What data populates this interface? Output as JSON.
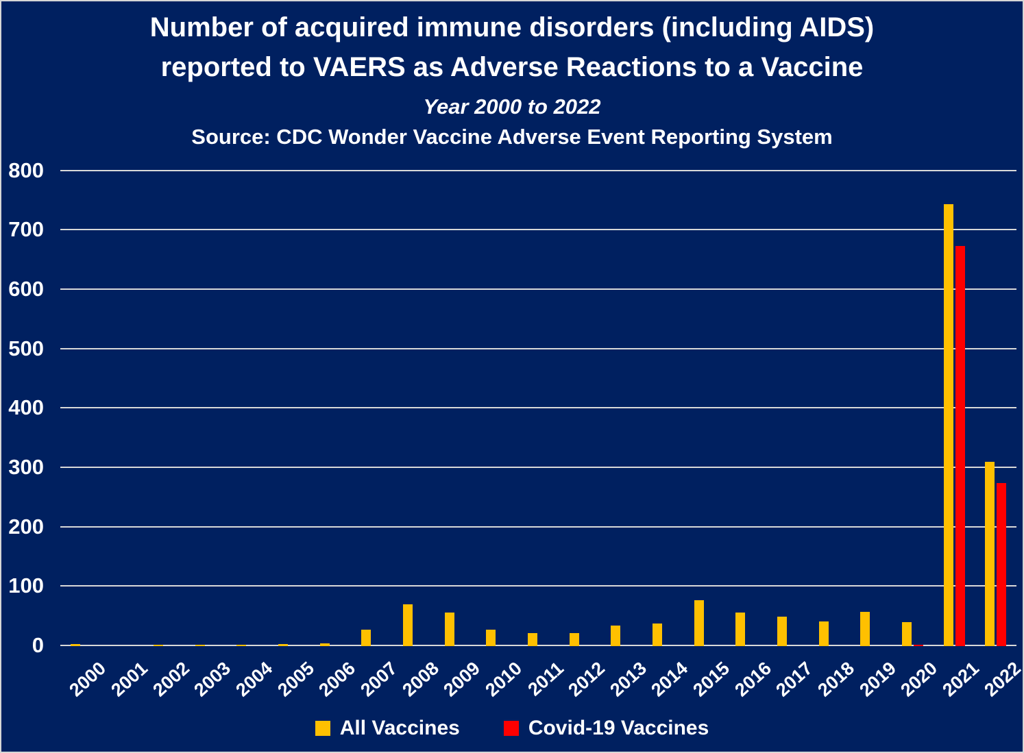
{
  "header": {
    "title_line1": "Number of acquired immune disorders (including AIDS)",
    "title_line2": "reported to VAERS as Adverse Reactions to a Vaccine",
    "subtitle": "Year 2000 to 2022",
    "source": "Source: CDC Wonder Vaccine Adverse Event Reporting System"
  },
  "colors": {
    "background": "#002060",
    "frame_border": "#D6D6D6",
    "gridline": "#D9D9D9",
    "text": "#FFFFFF",
    "all_vaccines": "#FFC000",
    "covid_vaccines": "#FF0000"
  },
  "legend": {
    "items": [
      {
        "label": "All Vaccines",
        "color": "#FFC000"
      },
      {
        "label": "Covid-19 Vaccines",
        "color": "#FF0000"
      }
    ]
  },
  "chart_data": {
    "type": "bar",
    "title": "Number of acquired immune disorders (including AIDS) reported to VAERS as Adverse Reactions to a Vaccine",
    "subtitle": "Year 2000 to 2022",
    "source": "Source: CDC Wonder Vaccine Adverse Event Reporting System",
    "categories": [
      "2000",
      "2001",
      "2002",
      "2003",
      "2004",
      "2005",
      "2006",
      "2007",
      "2008",
      "2009",
      "2010",
      "2011",
      "2012",
      "2013",
      "2014",
      "2015",
      "2016",
      "2017",
      "2018",
      "2019",
      "2020",
      "2021",
      "2022"
    ],
    "series": [
      {
        "name": "All Vaccines",
        "color": "#FFC000",
        "values": [
          3,
          0,
          2,
          2,
          2,
          4,
          5,
          28,
          70,
          57,
          28,
          22,
          22,
          35,
          38,
          77,
          57,
          50,
          42,
          58,
          40,
          744,
          310
        ]
      },
      {
        "name": "Covid-19 Vaccines",
        "color": "#FF0000",
        "values": [
          0,
          0,
          0,
          0,
          0,
          0,
          0,
          0,
          0,
          0,
          0,
          0,
          0,
          0,
          0,
          0,
          0,
          0,
          0,
          0,
          2,
          674,
          275
        ]
      }
    ],
    "ylabel": "",
    "xlabel": "",
    "ylim": [
      0,
      800
    ],
    "y_ticks": [
      0,
      100,
      200,
      300,
      400,
      500,
      600,
      700,
      800
    ],
    "grid": true,
    "legend_position": "bottom"
  }
}
